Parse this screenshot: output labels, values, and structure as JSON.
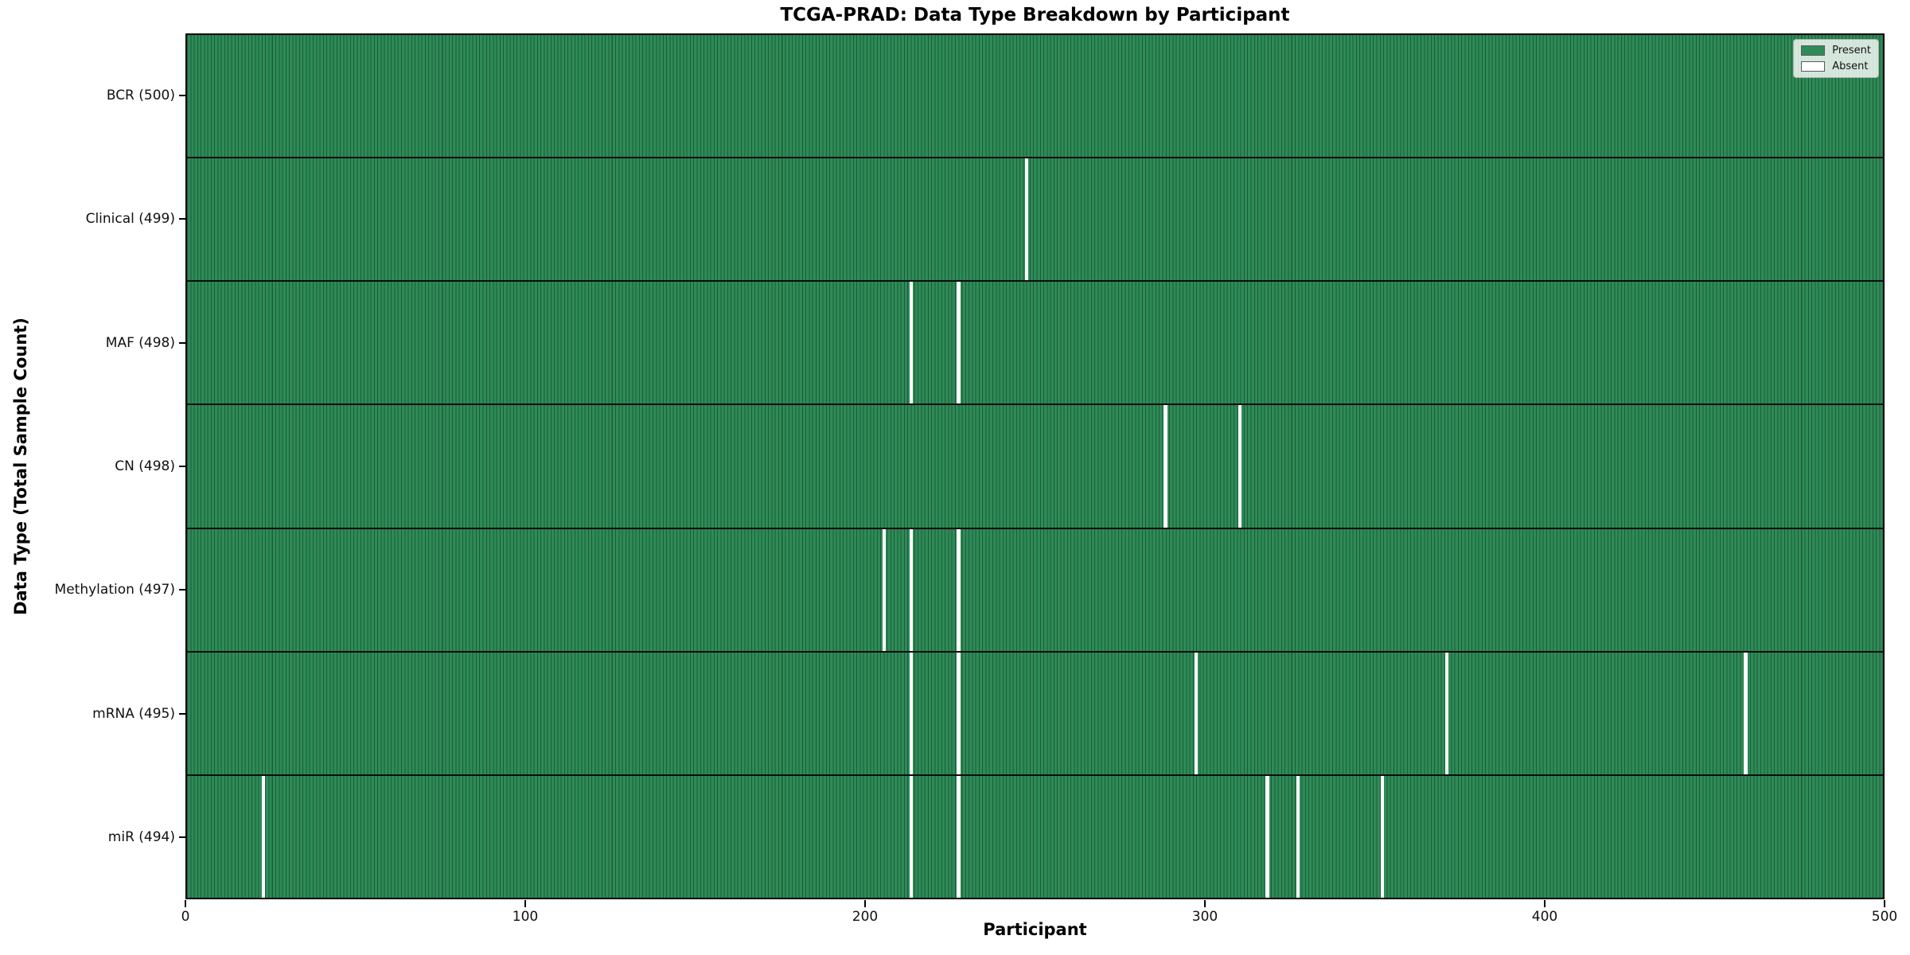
{
  "colors": {
    "present": "#2e8b57",
    "cell_edge": "#1c5c3a",
    "absent": "#ffffff",
    "row_divider": "#0d0d0d",
    "plot_border": "#000000"
  },
  "chart_data": {
    "type": "heatmap",
    "title": "TCGA-PRAD: Data Type Breakdown by Participant",
    "xlabel": "Participant",
    "ylabel": "Data Type (Total Sample Count)",
    "xlim": [
      0,
      500
    ],
    "x_ticks": [
      0,
      100,
      200,
      300,
      400,
      500
    ],
    "n_participants": 500,
    "grid": false,
    "legend_position": "upper right",
    "legend": [
      {
        "label": "Present",
        "color": "#2e8b57"
      },
      {
        "label": "Absent",
        "color": "#ffffff"
      }
    ],
    "rows": [
      {
        "data_type": "BCR",
        "label": "BCR (500)",
        "total": 500,
        "absent_participants": []
      },
      {
        "data_type": "Clinical",
        "label": "Clinical (499)",
        "total": 499,
        "absent_participants": [
          247
        ]
      },
      {
        "data_type": "MAF",
        "label": "MAF (498)",
        "total": 498,
        "absent_participants": [
          213,
          227
        ]
      },
      {
        "data_type": "CN",
        "label": "CN (498)",
        "total": 498,
        "absent_participants": [
          288,
          310
        ]
      },
      {
        "data_type": "Methylation",
        "label": "Methylation (497)",
        "total": 497,
        "absent_participants": [
          205,
          213,
          227
        ]
      },
      {
        "data_type": "mRNA",
        "label": "mRNA (495)",
        "total": 495,
        "absent_participants": [
          213,
          227,
          297,
          371,
          459
        ]
      },
      {
        "data_type": "miR",
        "label": "miR (494)",
        "total": 494,
        "absent_participants": [
          22,
          213,
          227,
          318,
          327,
          352
        ]
      }
    ]
  }
}
